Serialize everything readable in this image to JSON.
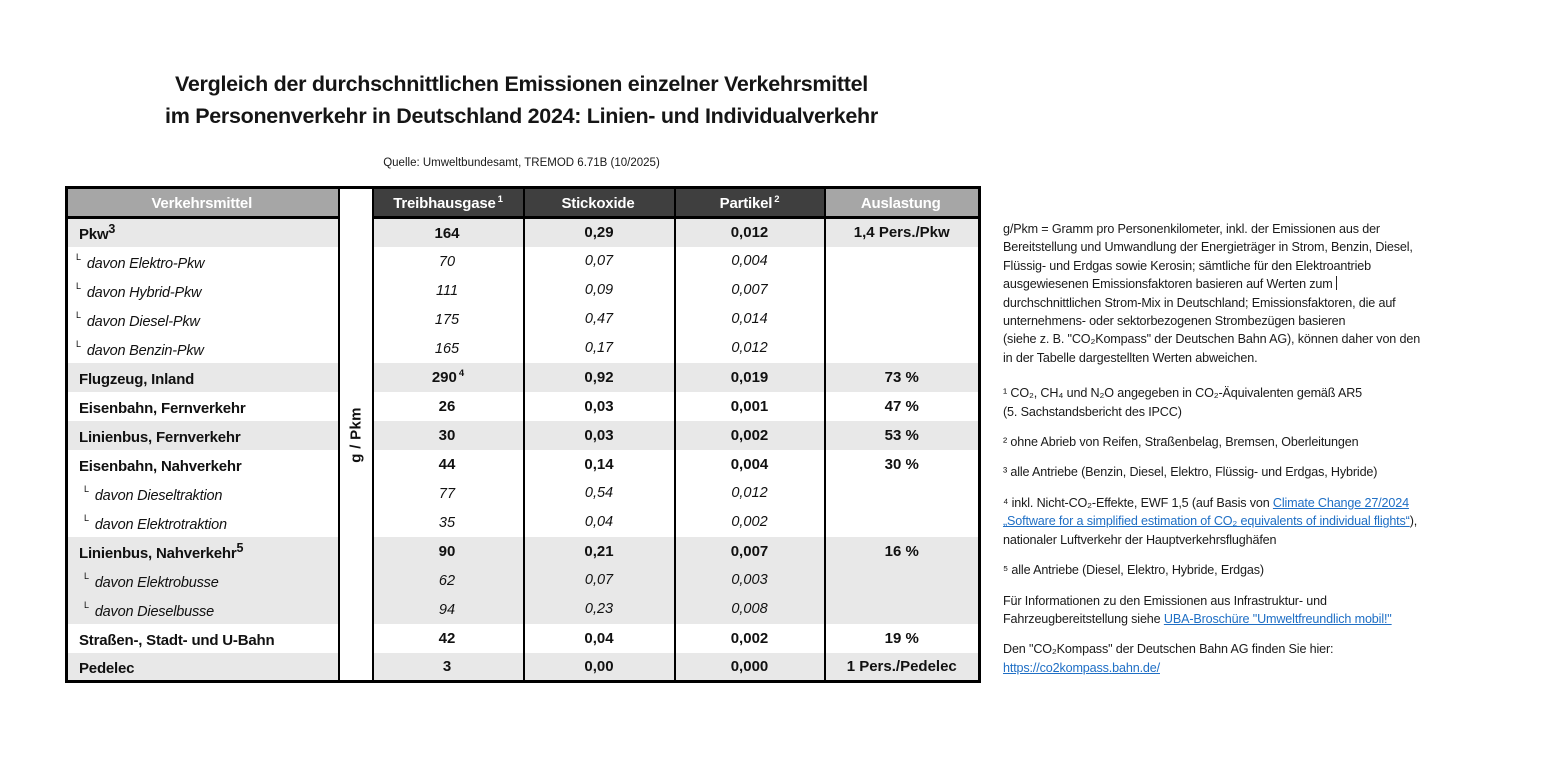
{
  "title": {
    "line1": "Vergleich der durchschnittlichen Emissionen einzelner Verkehrsmittel",
    "line2": "im Personenverkehr in Deutschland 2024: Linien- und Individualverkehr"
  },
  "source": "Quelle: Umweltbundesamt, TREMOD 6.71B (10/2025)",
  "colors": {
    "link_blue": "#1F6FC5",
    "header_dark": "#3F3F3F",
    "header_light": "#A6A6A6",
    "row_shaded": "#E8E8E8"
  },
  "table": {
    "unit_label": "g / Pkm",
    "sub_marker": "L",
    "columns": [
      {
        "label": "Verkehrsmittel",
        "sup": ""
      },
      {
        "label": "Treibhausgase",
        "sup": "1"
      },
      {
        "label": "Stickoxide",
        "sup": ""
      },
      {
        "label": "Partikel",
        "sup": "2"
      },
      {
        "label": "Auslastung",
        "sup": ""
      }
    ],
    "rows": [
      {
        "label": "Pkw",
        "sup": "3",
        "ghg": "164",
        "ghg_sup": "",
        "nox": "0,29",
        "pm": "0,012",
        "load": "1,4 Pers./Pkw",
        "style": "main",
        "shaded": true,
        "indent": 0
      },
      {
        "label": "davon Elektro-Pkw",
        "sup": "",
        "ghg": "70",
        "ghg_sup": "",
        "nox": "0,07",
        "pm": "0,004",
        "load": "",
        "style": "sub",
        "shaded": false,
        "indent": 1
      },
      {
        "label": "davon Hybrid-Pkw",
        "sup": "",
        "ghg": "111",
        "ghg_sup": "",
        "nox": "0,09",
        "pm": "0,007",
        "load": "",
        "style": "sub",
        "shaded": false,
        "indent": 1
      },
      {
        "label": "davon Diesel-Pkw",
        "sup": "",
        "ghg": "175",
        "ghg_sup": "",
        "nox": "0,47",
        "pm": "0,014",
        "load": "",
        "style": "sub",
        "shaded": false,
        "indent": 1
      },
      {
        "label": "davon Benzin-Pkw",
        "sup": "",
        "ghg": "165",
        "ghg_sup": "",
        "nox": "0,17",
        "pm": "0,012",
        "load": "",
        "style": "sub",
        "shaded": false,
        "indent": 1
      },
      {
        "label": "Flugzeug, Inland",
        "sup": "",
        "ghg": "290",
        "ghg_sup": "4",
        "nox": "0,92",
        "pm": "0,019",
        "load": "73 %",
        "style": "main",
        "shaded": true,
        "indent": 0
      },
      {
        "label": "Eisenbahn, Fernverkehr",
        "sup": "",
        "ghg": "26",
        "ghg_sup": "",
        "nox": "0,03",
        "pm": "0,001",
        "load": "47 %",
        "style": "main",
        "shaded": false,
        "indent": 0
      },
      {
        "label": "Linienbus, Fernverkehr",
        "sup": "",
        "ghg": "30",
        "ghg_sup": "",
        "nox": "0,03",
        "pm": "0,002",
        "load": "53 %",
        "style": "main",
        "shaded": true,
        "indent": 0
      },
      {
        "label": "Eisenbahn, Nahverkehr",
        "sup": "",
        "ghg": "44",
        "ghg_sup": "",
        "nox": "0,14",
        "pm": "0,004",
        "load": "30 %",
        "style": "main",
        "shaded": false,
        "indent": 0
      },
      {
        "label": "davon Dieseltraktion",
        "sup": "",
        "ghg": "77",
        "ghg_sup": "",
        "nox": "0,54",
        "pm": "0,012",
        "load": "",
        "style": "sub",
        "shaded": false,
        "indent": 2
      },
      {
        "label": "davon Elektrotraktion",
        "sup": "",
        "ghg": "35",
        "ghg_sup": "",
        "nox": "0,04",
        "pm": "0,002",
        "load": "",
        "style": "sub",
        "shaded": false,
        "indent": 2
      },
      {
        "label": "Linienbus, Nahverkehr",
        "sup": "5",
        "ghg": "90",
        "ghg_sup": "",
        "nox": "0,21",
        "pm": "0,007",
        "load": "16 %",
        "style": "main",
        "shaded": true,
        "indent": 0
      },
      {
        "label": "davon Elektrobusse",
        "sup": "",
        "ghg": "62",
        "ghg_sup": "",
        "nox": "0,07",
        "pm": "0,003",
        "load": "",
        "style": "sub",
        "shaded": true,
        "indent": 2
      },
      {
        "label": "davon Dieselbusse",
        "sup": "",
        "ghg": "94",
        "ghg_sup": "",
        "nox": "0,23",
        "pm": "0,008",
        "load": "",
        "style": "sub",
        "shaded": true,
        "indent": 2
      },
      {
        "label": "Straßen-, Stadt- und U-Bahn",
        "sup": "",
        "ghg": "42",
        "ghg_sup": "",
        "nox": "0,04",
        "pm": "0,002",
        "load": "19 %",
        "style": "main",
        "shaded": false,
        "indent": 0
      },
      {
        "label": "Pedelec",
        "sup": "",
        "ghg": "3",
        "ghg_sup": "",
        "nox": "0,00",
        "pm": "0,000",
        "load": "1 Pers./Pedelec",
        "style": "main",
        "shaded": true,
        "indent": 0
      }
    ]
  },
  "notes": [
    {
      "name": "gpkm-definition",
      "segments": [
        {
          "text": "g/Pkm = Gramm pro Personenkilometer, inkl. der Emissionen aus der\nBereitstellung und Umwandlung der Energieträger in Strom, Benzin, Diesel,\nFlüssig- und Erdgas sowie Kerosin; sämtliche für den Elektroantrieb\nausgewiesenen Emissionsfaktoren basieren auf Werten zum "
        },
        {
          "caret": true
        },
        {
          "text": "\ndurchschnittlichen Strom-Mix in Deutschland; Emissionsfaktoren, die auf\nunternehmens- oder sektorbezogenen Strombezügen basieren\n(siehe z. B. \"CO₂Kompass\" der Deutschen Bahn AG), können daher von den\nin der Tabelle dargestellten Werten abweichen."
        }
      ]
    },
    {
      "name": "footnote-1",
      "segments": [
        {
          "text": "¹ CO₂, CH₄ und N₂O angegeben in CO₂-Äquivalenten gemäß AR5\n(5. Sachstandsbericht des IPCC)"
        }
      ]
    },
    {
      "name": "footnote-2",
      "segments": [
        {
          "text": "² ohne Abrieb von Reifen, Straßenbelag, Bremsen, Oberleitungen"
        }
      ]
    },
    {
      "name": "footnote-3",
      "segments": [
        {
          "text": "³ alle Antriebe (Benzin, Diesel, Elektro, Flüssig- und Erdgas, Hybride)"
        }
      ]
    },
    {
      "name": "footnote-4",
      "segments": [
        {
          "text": "⁴ inkl. Nicht-CO₂-Effekte, EWF 1,5 (auf Basis von "
        },
        {
          "link": "Climate Change 27/2024\n„Software for a simplified estimation of CO₂ equivalents of individual flights“"
        },
        {
          "text": "),\nnationaler Luftverkehr der Hauptverkehrsflughäfen"
        }
      ]
    },
    {
      "name": "footnote-5",
      "segments": [
        {
          "text": "⁵ alle Antriebe (Diesel, Elektro, Hybride, Erdgas)"
        }
      ]
    },
    {
      "name": "infrastructure-info",
      "segments": [
        {
          "text": "Für Informationen zu den Emissionen aus Infrastruktur- und\nFahrzeugbereitstellung siehe "
        },
        {
          "link": "UBA-Broschüre \"Umweltfreundlich mobil!\""
        }
      ]
    },
    {
      "name": "co2kompass-info",
      "segments": [
        {
          "text": "Den \"CO₂Kompass\" der Deutschen Bahn AG finden Sie hier:\n"
        },
        {
          "link": "https://co2kompass.bahn.de/"
        }
      ]
    }
  ]
}
